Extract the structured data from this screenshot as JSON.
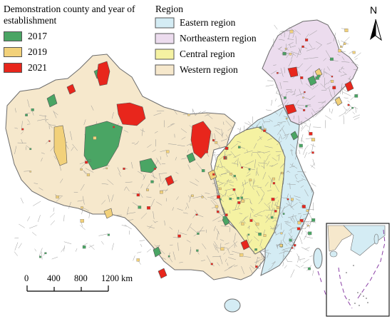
{
  "legend_demo": {
    "title": "Demonstration county and year of establishment",
    "items": [
      {
        "label": "2017",
        "color": "#4aa564"
      },
      {
        "label": "2019",
        "color": "#f2d17a"
      },
      {
        "label": "2021",
        "color": "#e8261c"
      }
    ]
  },
  "legend_region": {
    "title": "Region",
    "items": [
      {
        "label": "Eastern region",
        "color": "#d4ecf4"
      },
      {
        "label": "Northeastern region",
        "color": "#ecdcee"
      },
      {
        "label": "Central region",
        "color": "#f5f2a2"
      },
      {
        "label": "Western region",
        "color": "#f6e8cc"
      }
    ]
  },
  "north_arrow": {
    "label": "N",
    "icon": "north-arrow-icon"
  },
  "scale_bar": {
    "ticks": [
      "0",
      "400",
      "800",
      "1200 km"
    ]
  },
  "colors": {
    "boundary": "#6d6d6d",
    "inset_border": "#222222",
    "dashed_line": "#8a3fa5"
  }
}
